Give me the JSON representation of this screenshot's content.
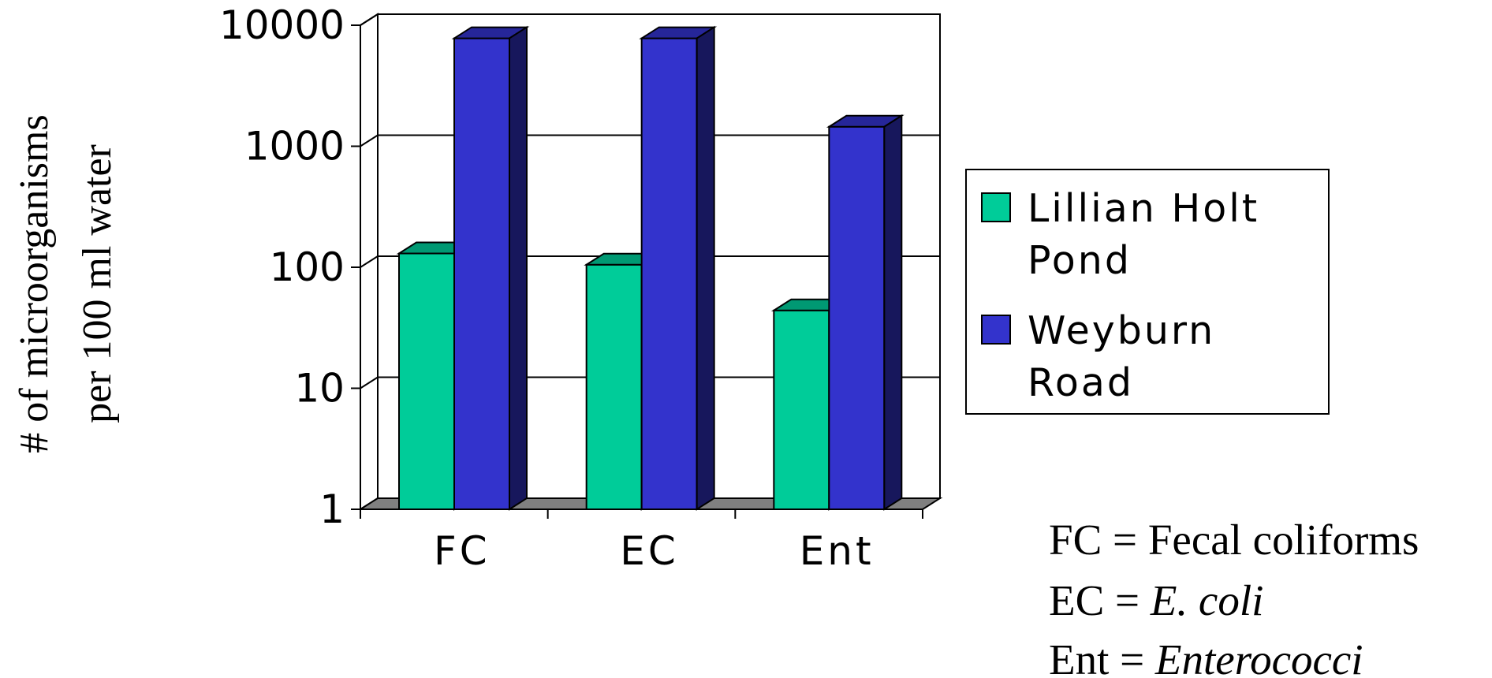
{
  "chart_data": {
    "type": "bar",
    "ylabel": [
      "# of microorganisms",
      "per 100 ml water"
    ],
    "yscale": "log",
    "ylim": [
      1,
      10000
    ],
    "yticks": [
      "10000",
      "1000",
      "100",
      "10",
      "1"
    ],
    "categories": [
      "FC",
      "EC",
      "Ent"
    ],
    "series": [
      {
        "name": "Lillian Holt Pond",
        "values": [
          130,
          105,
          44
        ]
      },
      {
        "name": "Weyburn Road",
        "values": [
          7800,
          7800,
          1450
        ]
      }
    ],
    "legend": {
      "placement": "right",
      "lines": [
        [
          "Lillian Holt",
          "Pond"
        ],
        [
          "Weyburn",
          "Road"
        ]
      ]
    },
    "grid": true,
    "colors": {
      "Lillian Holt Pond": "#00cc99",
      "Weyburn Road": "#3333cc",
      "floor": "#808080"
    }
  },
  "notes": [
    {
      "abbr": "FC",
      "sep": " = ",
      "text": "Fecal coliforms",
      "italic": false
    },
    {
      "abbr": "EC",
      "sep": " = ",
      "text": "E. coli",
      "italic": true
    },
    {
      "abbr": "Ent",
      "sep": " = ",
      "text": "Enterococci",
      "italic": true
    }
  ]
}
